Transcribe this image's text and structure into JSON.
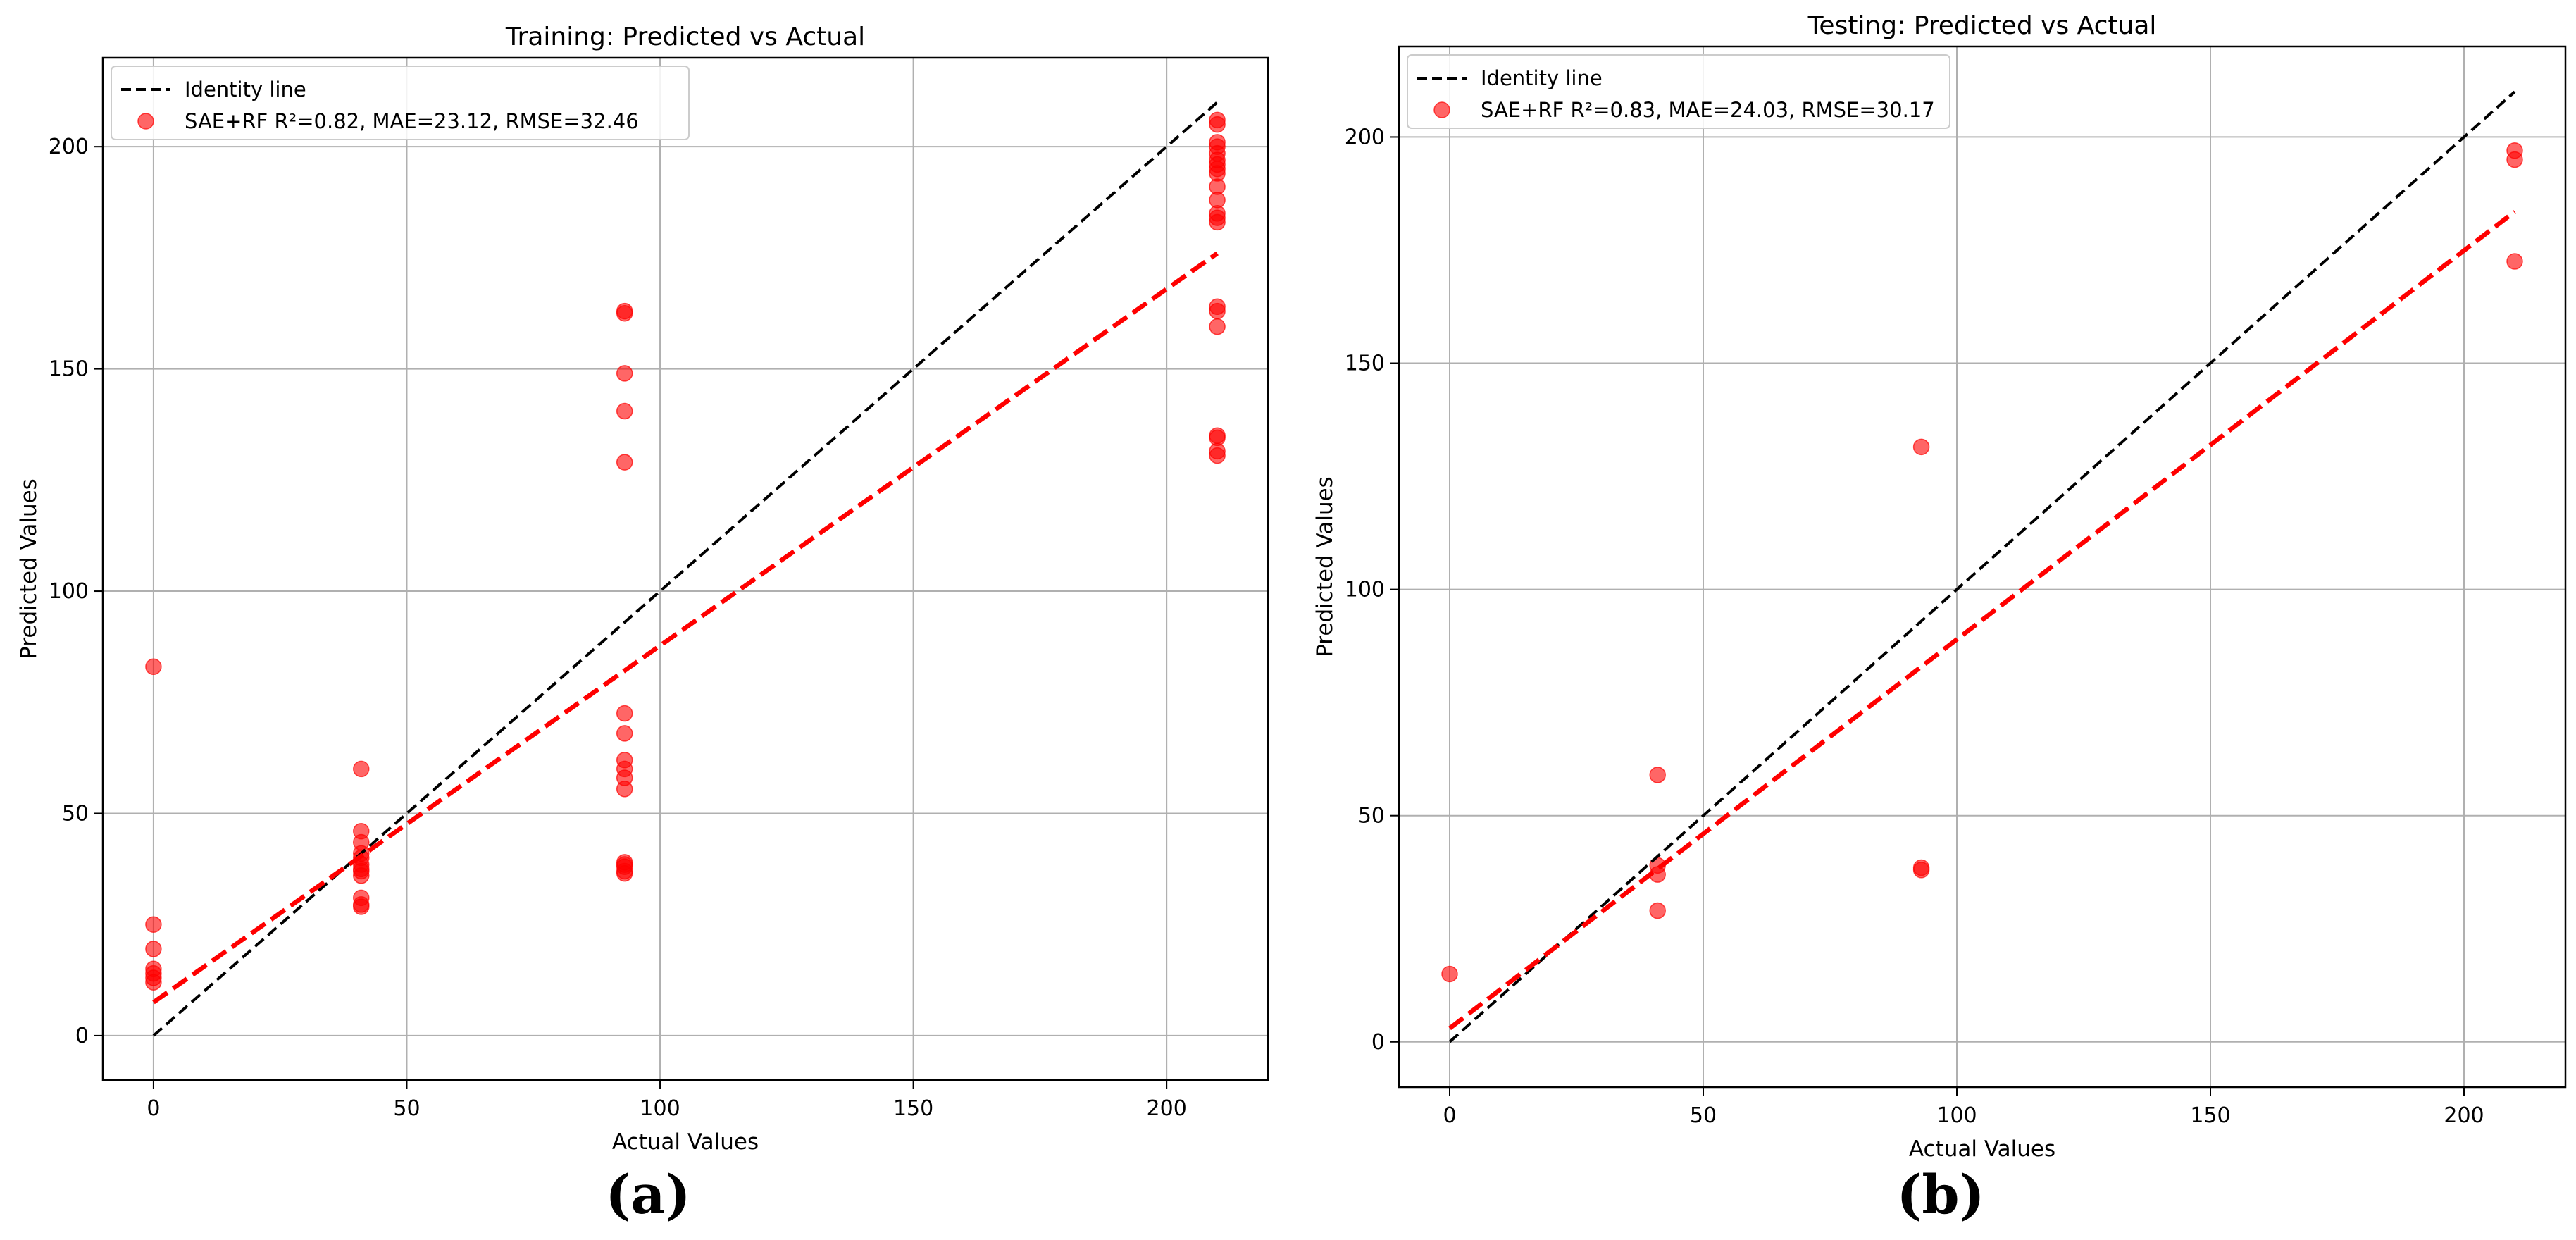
{
  "panel_labels": [
    "(a)",
    "(b)"
  ],
  "chart_data": [
    {
      "type": "scatter",
      "title": "Training: Predicted vs Actual",
      "xlabel": "Actual Values",
      "ylabel": "Predicted Values",
      "xlim": [
        -10,
        220
      ],
      "ylim": [
        -10,
        220
      ],
      "xticks": [
        0,
        50,
        100,
        150,
        200
      ],
      "yticks": [
        0,
        50,
        100,
        150,
        200
      ],
      "grid": true,
      "legend_position": "top-left",
      "identity_line": {
        "label": "Identity line",
        "color": "#000000",
        "from": [
          0,
          0
        ],
        "to": [
          210,
          210
        ]
      },
      "fit_line": {
        "color": "#ff0000",
        "from": [
          0,
          7.5
        ],
        "to": [
          210,
          176
        ]
      },
      "series": [
        {
          "name": "SAE+RF R²=0.82, MAE=23.12, RMSE=32.46",
          "color": "#ff0000",
          "x": [
            0,
            0,
            0,
            0,
            0,
            0,
            0,
            41,
            41,
            41,
            41,
            41,
            41,
            41,
            41,
            41,
            41,
            41,
            41,
            93,
            93,
            93,
            93,
            93,
            93,
            93,
            93,
            93,
            93,
            93,
            93,
            93,
            93,
            93,
            93,
            210,
            210,
            210,
            210,
            210,
            210,
            210,
            210,
            210,
            210,
            210,
            210,
            210,
            210,
            210,
            210,
            210,
            210,
            210,
            210,
            210
          ],
          "y": [
            83,
            25,
            19.5,
            15,
            14,
            13,
            12,
            60,
            46,
            43.5,
            41,
            40,
            38.5,
            37.5,
            37,
            36,
            31,
            29.5,
            29,
            163,
            162.5,
            149,
            140.5,
            129,
            72.5,
            68,
            62,
            60,
            58,
            55.5,
            39,
            38.5,
            38,
            37,
            36.5,
            206,
            201,
            200,
            197,
            195,
            194,
            191,
            188,
            185,
            184,
            183,
            164,
            163,
            159.5,
            135,
            134.5,
            131.5,
            130.5,
            205,
            198.5,
            196
          ]
        }
      ]
    },
    {
      "type": "scatter",
      "title": "Testing: Predicted vs Actual",
      "xlabel": "Actual Values",
      "ylabel": "Predicted Values",
      "xlim": [
        -10,
        220
      ],
      "ylim": [
        -10,
        220
      ],
      "xticks": [
        0,
        50,
        100,
        150,
        200
      ],
      "yticks": [
        0,
        50,
        100,
        150,
        200
      ],
      "grid": true,
      "legend_position": "top-left",
      "identity_line": {
        "label": "Identity line",
        "color": "#000000",
        "from": [
          0,
          0
        ],
        "to": [
          210,
          210
        ]
      },
      "fit_line": {
        "color": "#ff0000",
        "from": [
          0,
          3
        ],
        "to": [
          210,
          183.5
        ]
      },
      "series": [
        {
          "name": "SAE+RF R²=0.83, MAE=24.03, RMSE=30.17",
          "color": "#ff0000",
          "x": [
            0,
            41,
            41,
            41,
            41,
            93,
            93,
            93,
            210,
            210,
            210
          ],
          "y": [
            15,
            59,
            39,
            37,
            29,
            131.5,
            38.5,
            38,
            197,
            195,
            172.5
          ]
        }
      ]
    }
  ]
}
